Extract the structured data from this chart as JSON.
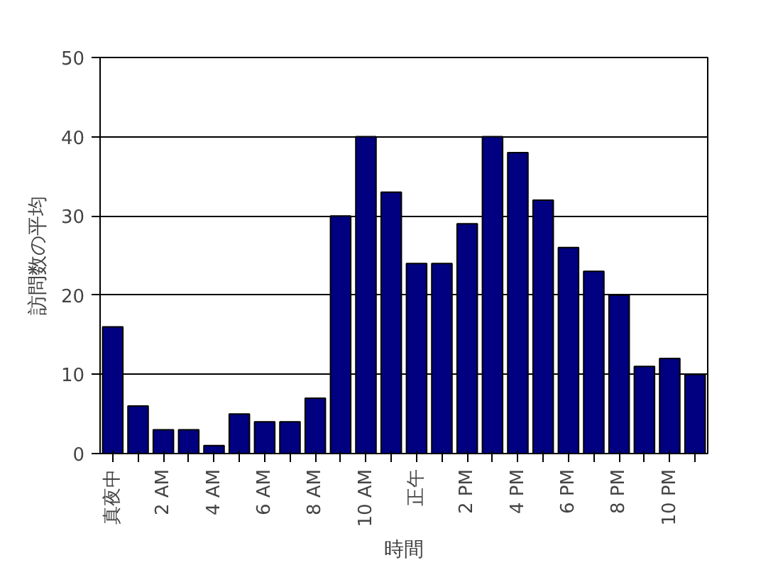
{
  "chart_data": {
    "type": "bar",
    "xlabel": "時間",
    "ylabel": "訪問数の平均",
    "categories": [
      "真夜中",
      null,
      "2 AM",
      null,
      "4 AM",
      null,
      "6 AM",
      null,
      "8 AM",
      null,
      "10 AM",
      null,
      "正午",
      null,
      "2 PM",
      null,
      "4 PM",
      null,
      "6 PM",
      null,
      "8 PM",
      null,
      "10 PM",
      null
    ],
    "values": [
      16,
      6,
      3,
      3,
      1,
      5,
      4,
      4,
      7,
      30,
      40,
      33,
      24,
      24,
      29,
      40,
      38,
      32,
      26,
      23,
      20,
      11,
      12,
      10
    ],
    "color": "#000080",
    "ylim": [
      0,
      50
    ],
    "yticks": [
      0,
      10,
      20,
      30,
      40,
      50
    ],
    "grid": "y"
  }
}
